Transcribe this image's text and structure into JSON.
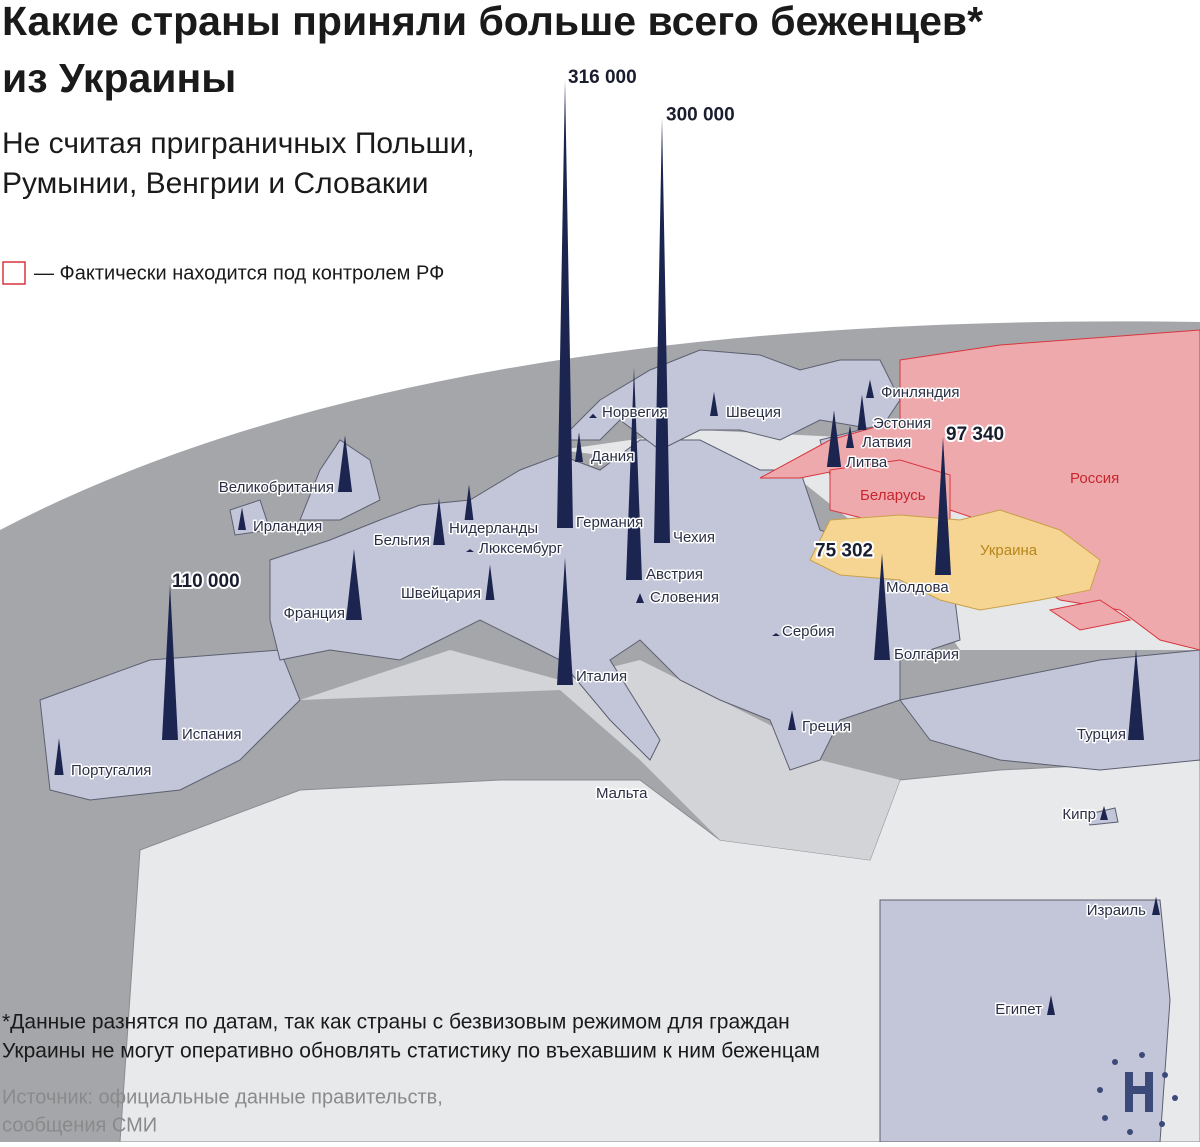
{
  "chart_data": {
    "type": "spike-map",
    "title": [
      "Какие страны приняли больше всего беженцев*",
      "из Украины"
    ],
    "subtitle": [
      "Не считая приграничных Польши,",
      "Румынии, Венгрии и Словакии"
    ],
    "legend_label": "— Фактически находится под контролем РФ",
    "color": "#1c2550",
    "categories": [
      "Германия",
      "Чехия",
      "Испания",
      "Молдова",
      "Болгария",
      "Австрия",
      "Италия",
      "Франция",
      "Великобритания",
      "Нидерланды",
      "Бельгия",
      "Люксембург",
      "Швейцария",
      "Литва",
      "Латвия",
      "Эстония",
      "Финляндия",
      "Швеция",
      "Норвегия",
      "Дания",
      "Ирландия",
      "Португалия",
      "Греция",
      "Турция",
      "Кипр",
      "Израиль",
      "Египет",
      "Сербия",
      "Словения",
      "Мальта"
    ],
    "values": [
      316000,
      300000,
      110000,
      97340,
      75302,
      150000,
      90000,
      50000,
      40000,
      25000,
      33000,
      2000,
      25000,
      40000,
      16000,
      25000,
      13000,
      17000,
      3000,
      21000,
      16000,
      26000,
      14000,
      64000,
      10000,
      13000,
      14000,
      2000,
      7000,
      null
    ],
    "value_labels": [
      "316 000",
      "300 000",
      "110 000",
      "97 340",
      "75 302",
      null,
      null,
      null,
      null,
      null,
      null,
      null,
      null,
      null,
      null,
      null,
      null,
      null,
      null,
      null,
      null,
      null,
      null,
      null,
      null,
      null,
      null,
      null,
      null,
      null
    ],
    "region_labels": [
      "Беларусь",
      "Россия",
      "Украина"
    ],
    "footnote": [
      "*Данные разнятся по датам, так как страны с безвизовым режимом для граждан",
      "Украины не могут оперативно обновлять статистику по въехавшим к ним беженцам"
    ],
    "source": [
      "Источник: официальные данные правительств,",
      "сообщения СМИ"
    ]
  }
}
